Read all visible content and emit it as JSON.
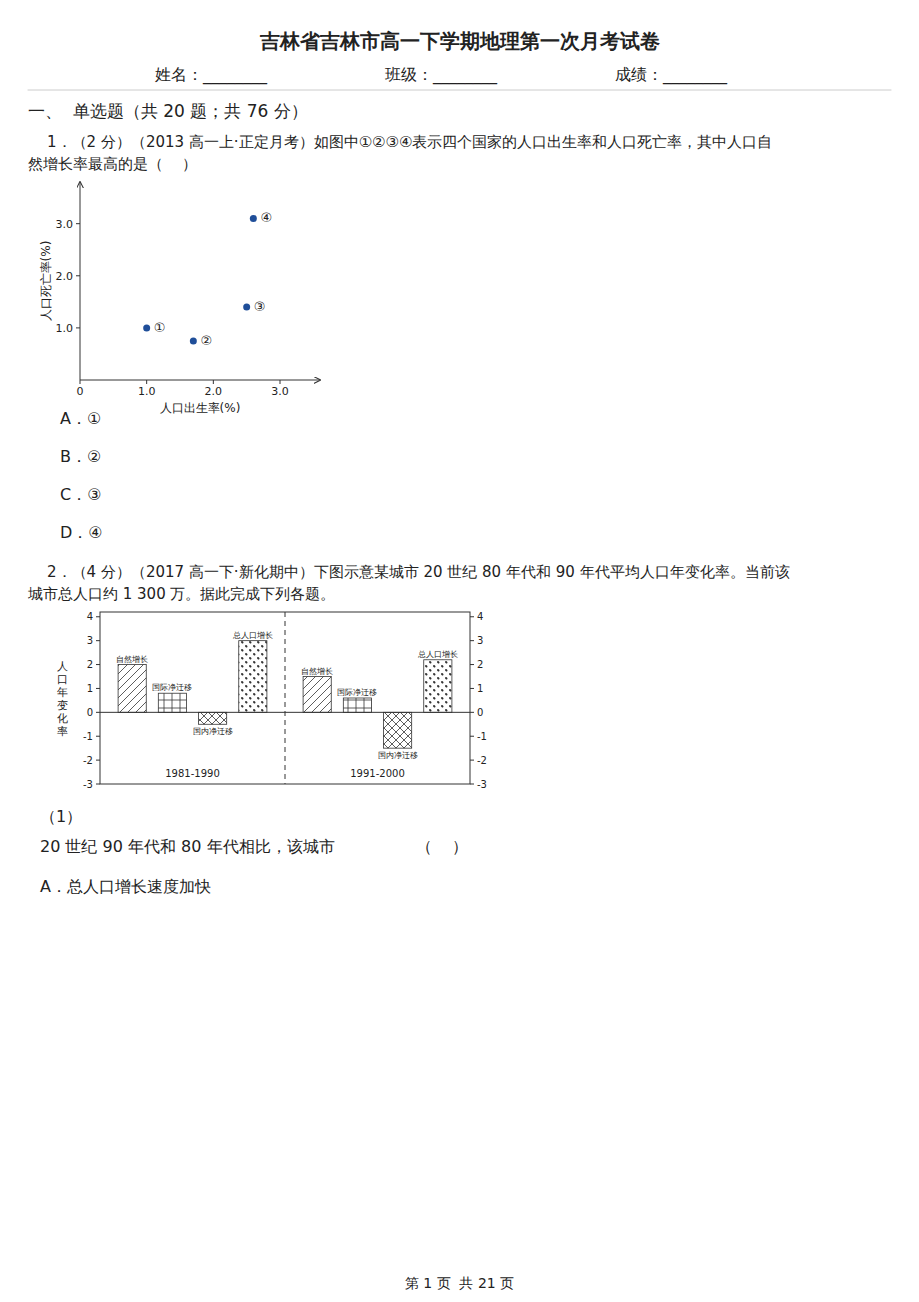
{
  "page": {
    "title": "吉林省吉林市高一下学期地理第一次月考试卷",
    "name_field": "姓名：________",
    "class_field": "班级：________",
    "score_field": "成绩：________",
    "section1": "一、  单选题（共 20 题；共 76 分）",
    "q1_line1": "    1．（2 分）（2013 高一上·正定月考）如图中①②③④表示四个国家的人口出生率和人口死亡率，其中人口自",
    "q1_line2": "然增长率最高的是（    ）",
    "q1_options": [
      "A．①",
      "B．②",
      "C．③",
      "D．④"
    ],
    "q2_line1": "    2．（4 分）（2017 高一下·新化期中）下图示意某城市 20 世纪 80 年代和 90 年代平均人口年变化率。当前该",
    "q2_line2": "城市总人口约 1 300 万。据此完成下列各题。",
    "q2_sub1_label": "（1）",
    "q2_sub1_text": "20 世纪 90 年代和 80 年代相比，该城市                （    ）",
    "q2_sub1_optA": "A．总人口增长速度加快",
    "footer": "第 1 页  共 21 页",
    "bg_color": "#ffffff"
  },
  "chart_data": [
    {
      "type": "scatter",
      "xlabel": "人口出生率(%)",
      "ylabel": "人口死亡率(%)",
      "x": [
        1.0,
        1.7,
        2.5,
        2.6
      ],
      "values": [
        1.0,
        0.75,
        1.4,
        3.1
      ],
      "labels": [
        "①",
        "②",
        "③",
        "④"
      ],
      "xlim": [
        0,
        3.6
      ],
      "ylim": [
        0,
        3.8
      ],
      "xticks": [
        0,
        {
          "value": 1.0,
          "label": "1.0"
        },
        {
          "value": 2.0,
          "label": "2.0"
        },
        {
          "value": 3.0,
          "label": "3.0"
        }
      ],
      "yticks": [
        {
          "value": 1.0,
          "label": "1.0"
        },
        {
          "value": 2.0,
          "label": "2.0"
        },
        {
          "value": 3.0,
          "label": "3.0"
        }
      ],
      "grid": false
    },
    {
      "type": "bar",
      "ylabel": "人\n口\n年\n变\n化\n率",
      "categories": [
        "1981-1990",
        "1991-2000"
      ],
      "series": [
        {
          "name": "自然增长",
          "values": [
            2.0,
            1.5
          ]
        },
        {
          "name": "国际净迁移",
          "values": [
            0.8,
            0.6
          ]
        },
        {
          "name": "国内净迁移",
          "values": [
            -0.5,
            -1.5
          ]
        },
        {
          "name": "总人口增长",
          "values": [
            3.0,
            2.2
          ]
        }
      ],
      "ylim": [
        -3,
        4.2
      ],
      "yticks": [
        -3,
        -2,
        -1,
        0,
        1,
        2,
        3,
        4
      ],
      "y2lim": [
        -3,
        4.2
      ],
      "y2ticks": [
        -3,
        -2,
        -1,
        0,
        1,
        2,
        3,
        4
      ],
      "grid": false
    }
  ]
}
